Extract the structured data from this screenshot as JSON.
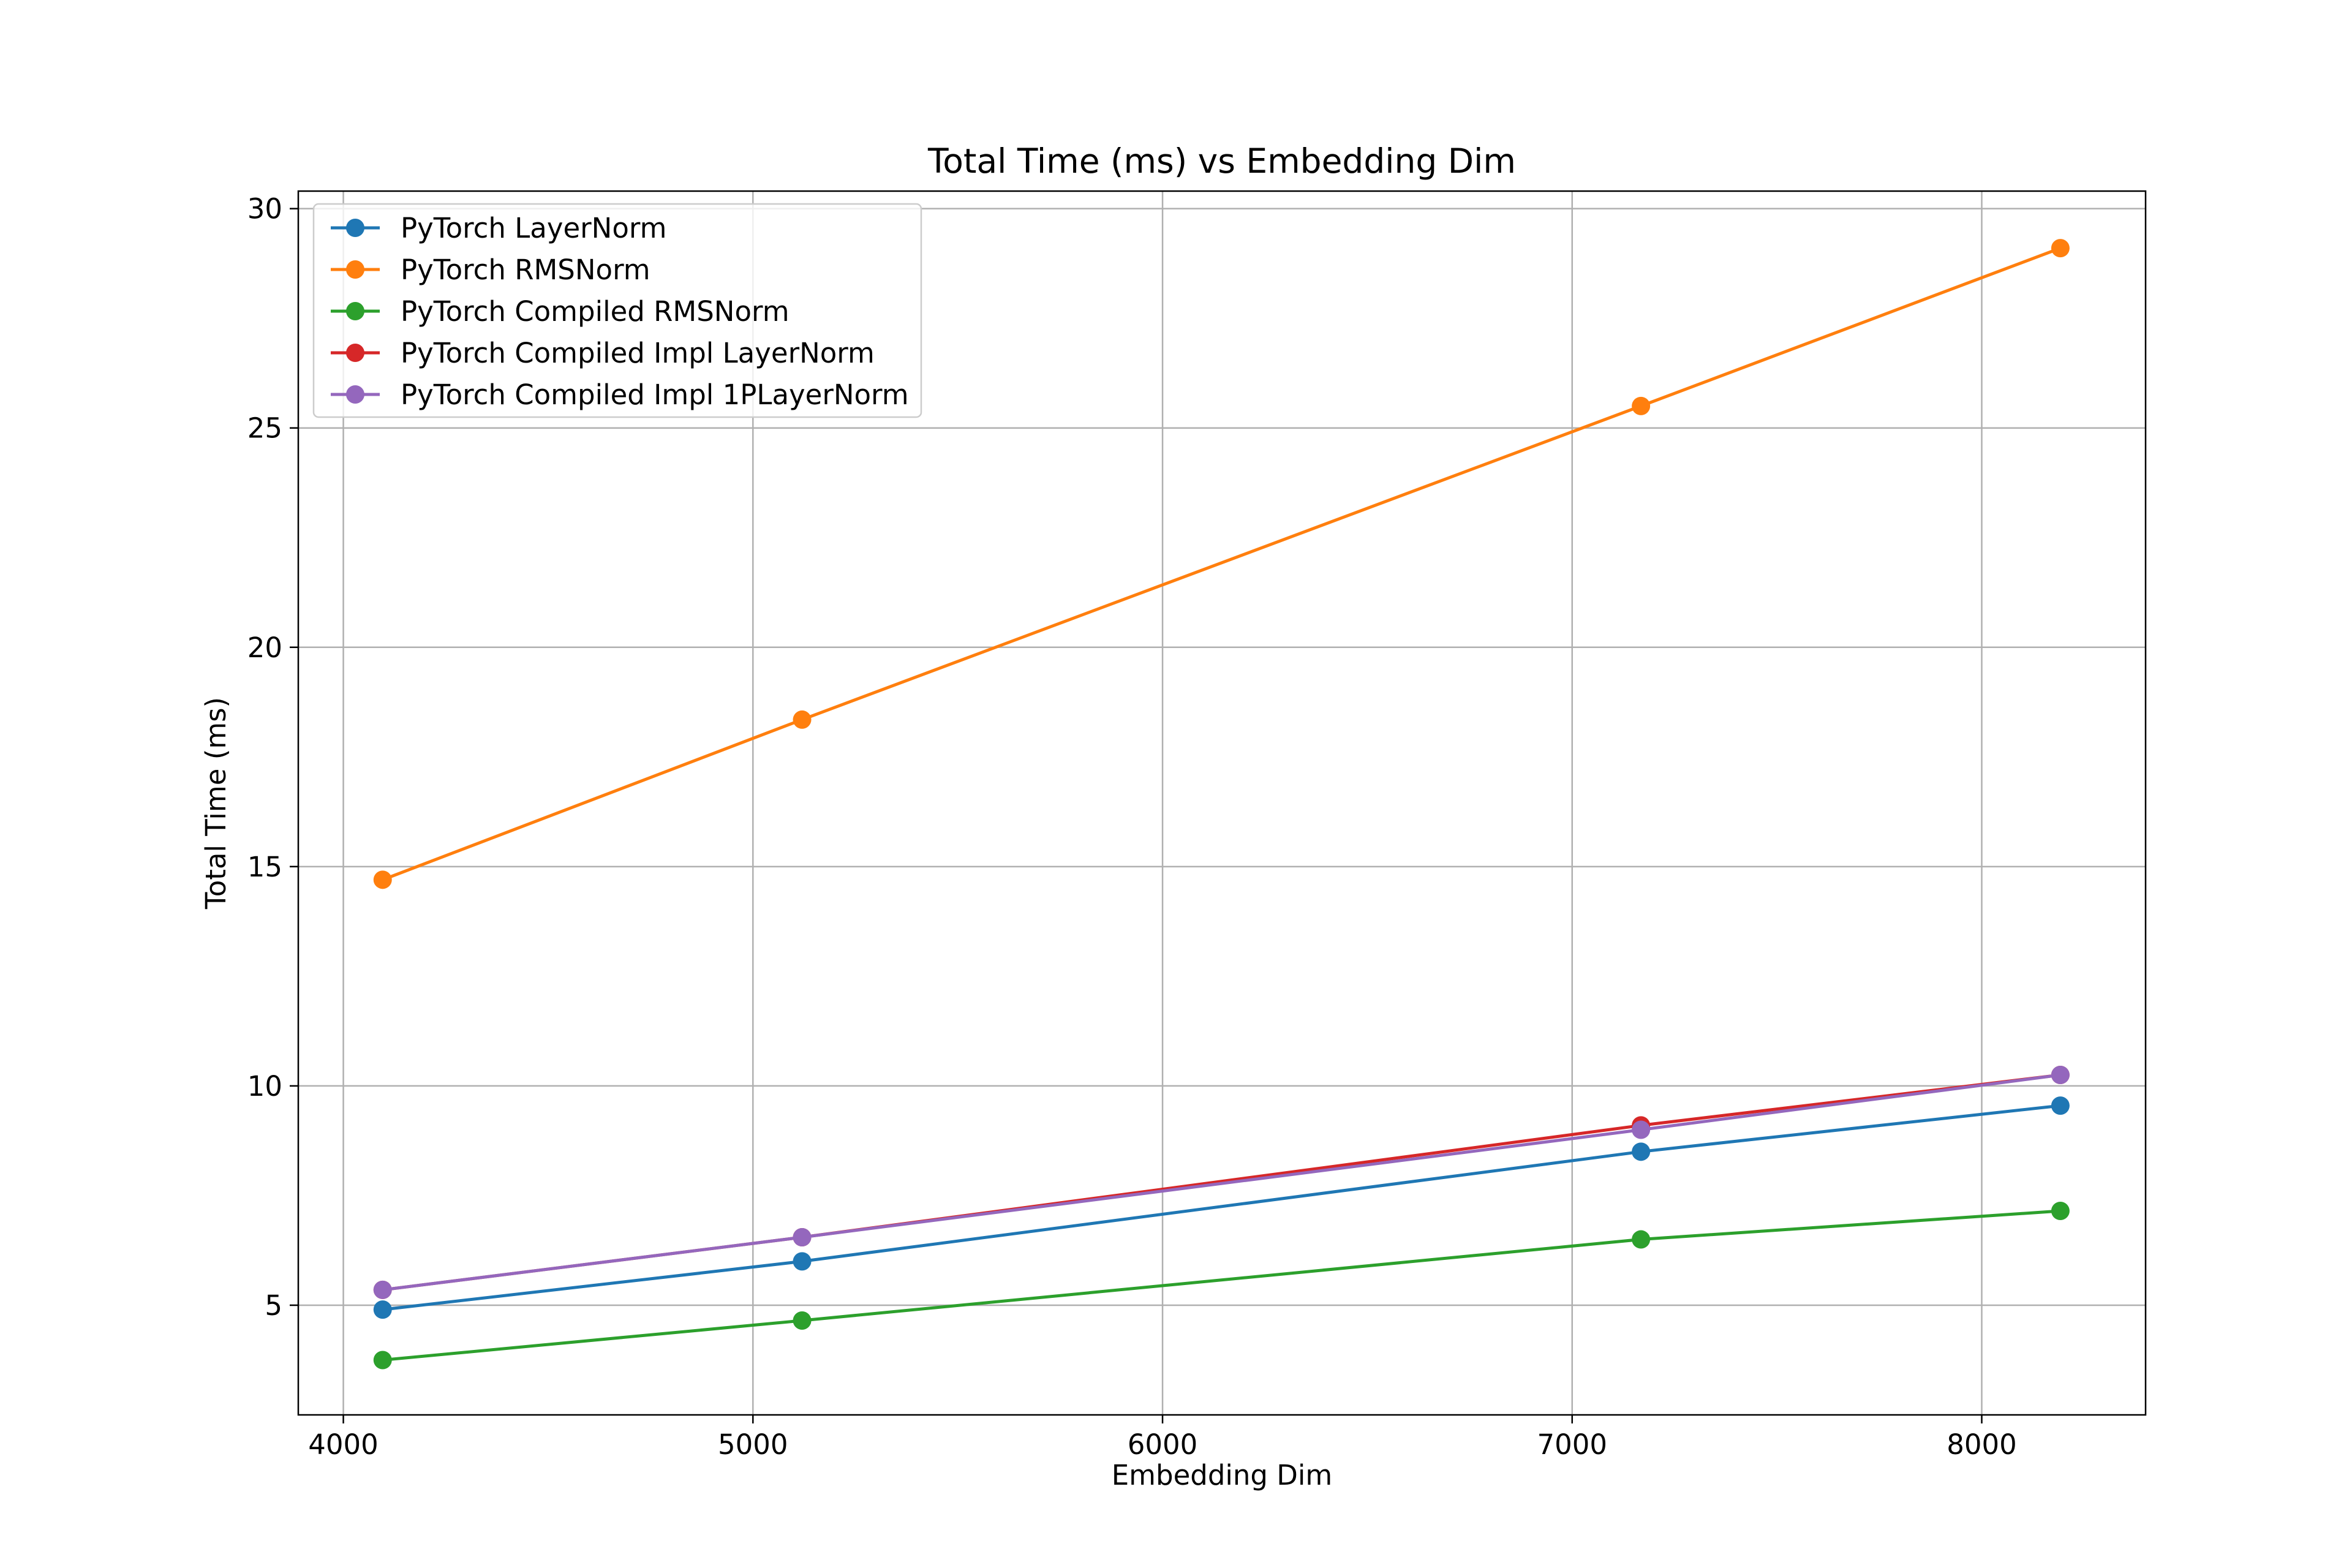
{
  "chart_data": {
    "type": "line",
    "title": "Total Time (ms) vs Embedding Dim",
    "xlabel": "Embedding Dim",
    "ylabel": "Total Time (ms)",
    "xlim": [
      3890,
      8400
    ],
    "ylim": [
      2.5,
      30.4
    ],
    "xticks": [
      4000,
      5000,
      6000,
      7000,
      8000
    ],
    "yticks": [
      5,
      10,
      15,
      20,
      25,
      30
    ],
    "grid": true,
    "legend_position": "top-left",
    "x": [
      4096,
      5120,
      7168,
      8192
    ],
    "series": [
      {
        "name": "PyTorch LayerNorm",
        "color": "#1f77b4",
        "marker": "circle",
        "values": [
          4.9,
          6.0,
          8.5,
          9.55
        ]
      },
      {
        "name": "PyTorch RMSNorm",
        "color": "#ff7f0e",
        "marker": "circle",
        "values": [
          14.7,
          18.35,
          25.5,
          29.1
        ]
      },
      {
        "name": "PyTorch Compiled RMSNorm",
        "color": "#2ca02c",
        "marker": "circle",
        "values": [
          3.75,
          4.65,
          6.5,
          7.15
        ]
      },
      {
        "name": "PyTorch Compiled Impl LayerNorm",
        "color": "#d62728",
        "marker": "circle",
        "values": [
          5.35,
          6.55,
          9.1,
          10.25
        ]
      },
      {
        "name": "PyTorch Compiled Impl 1PLayerNorm",
        "color": "#9467bd",
        "marker": "circle",
        "values": [
          5.35,
          6.55,
          9.0,
          10.25
        ]
      }
    ]
  }
}
